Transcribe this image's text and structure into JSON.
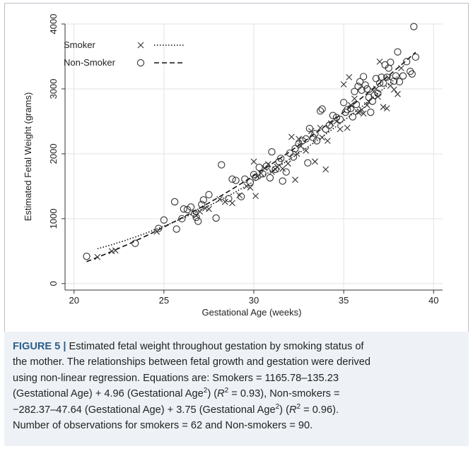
{
  "chart_data": {
    "type": "scatter",
    "xlabel": "Gestational Age (weeks)",
    "ylabel": "Estimated Fetal Weight (grams)",
    "xlim": [
      19.5,
      40.5
    ],
    "ylim": [
      -100,
      4000
    ],
    "xticks": [
      20,
      25,
      30,
      35,
      40
    ],
    "yticks": [
      0,
      1000,
      2000,
      3000,
      4000
    ],
    "grid": true,
    "legend_position": "top-left",
    "series": [
      {
        "name": "Smoker",
        "marker": "x",
        "line_style": "dotted",
        "fit": {
          "a": 1165.78,
          "b": -135.23,
          "c": 4.96
        },
        "x": [
          21.3,
          22.1,
          22.3,
          24.6,
          26.8,
          27.0,
          27.3,
          27.5,
          28.1,
          28.4,
          28.8,
          29.2,
          29.6,
          29.8,
          30.0,
          30.1,
          30.4,
          30.6,
          30.8,
          31.0,
          31.2,
          31.3,
          31.6,
          31.9,
          32.1,
          32.3,
          32.4,
          32.6,
          32.9,
          33.2,
          33.4,
          33.7,
          34.0,
          34.1,
          34.3,
          34.6,
          34.8,
          35.0,
          35.2,
          35.3,
          35.4,
          35.6,
          35.8,
          36.0,
          36.1,
          36.3,
          36.4,
          36.6,
          36.8,
          37.0,
          37.2,
          37.4,
          37.6,
          37.8,
          38.0,
          38.2,
          32.5,
          33.8,
          35.9,
          36.9,
          37.5,
          30.2
        ],
        "y": [
          410,
          500,
          510,
          800,
          1050,
          1110,
          1160,
          1150,
          1300,
          1260,
          1240,
          1360,
          1500,
          1480,
          1880,
          1350,
          1700,
          1780,
          1840,
          1720,
          1760,
          1800,
          1770,
          1850,
          2260,
          1600,
          2000,
          2120,
          2050,
          2350,
          1880,
          2400,
          1760,
          2200,
          2470,
          2500,
          2380,
          3070,
          2400,
          3180,
          2750,
          2850,
          2640,
          2680,
          2620,
          2750,
          2800,
          2980,
          3000,
          3420,
          2720,
          2700,
          3050,
          2990,
          2920,
          3320,
          2230,
          2250,
          2650,
          2880,
          3170,
          1650
        ]
      },
      {
        "name": "Non-Smoker",
        "marker": "o",
        "line_style": "dashed",
        "fit": {
          "a": -282.37,
          "b": -47.64,
          "c": 3.75
        },
        "x": [
          20.7,
          23.4,
          24.7,
          25.0,
          25.6,
          25.7,
          26.0,
          26.1,
          26.3,
          26.5,
          26.7,
          26.8,
          26.9,
          27.1,
          27.2,
          27.5,
          27.9,
          28.2,
          28.6,
          28.8,
          29.0,
          29.3,
          29.5,
          29.8,
          30.0,
          30.1,
          30.3,
          30.5,
          30.7,
          30.9,
          31.0,
          31.2,
          31.4,
          31.5,
          31.6,
          31.8,
          32.0,
          32.2,
          32.3,
          32.5,
          32.7,
          32.9,
          33.0,
          33.1,
          33.3,
          33.4,
          33.5,
          33.7,
          33.8,
          34.0,
          34.2,
          34.4,
          34.6,
          34.8,
          35.0,
          35.1,
          35.2,
          35.4,
          35.5,
          35.6,
          35.7,
          35.8,
          35.9,
          36.0,
          36.1,
          36.2,
          36.3,
          36.4,
          36.5,
          36.6,
          36.7,
          36.8,
          36.9,
          37.0,
          37.1,
          37.3,
          37.4,
          37.5,
          37.6,
          37.8,
          37.9,
          38.0,
          38.1,
          38.3,
          38.5,
          38.7,
          38.8,
          38.9,
          39.0,
          37.2
        ],
        "y": [
          420,
          620,
          850,
          980,
          1260,
          840,
          1000,
          1150,
          1140,
          1180,
          1080,
          1020,
          960,
          1220,
          1290,
          1370,
          1010,
          1830,
          1310,
          1610,
          1590,
          1340,
          1610,
          1560,
          1680,
          1640,
          1790,
          1690,
          1810,
          1630,
          2030,
          1760,
          1880,
          1930,
          1580,
          1720,
          2010,
          1950,
          2080,
          2150,
          2200,
          2230,
          1860,
          2390,
          2250,
          2310,
          2200,
          2660,
          2690,
          2380,
          2440,
          2590,
          2560,
          2530,
          2790,
          2640,
          2680,
          2700,
          2570,
          2960,
          2760,
          3040,
          3110,
          2980,
          3190,
          3060,
          3000,
          2870,
          2640,
          2810,
          2900,
          3160,
          2930,
          3090,
          3180,
          3370,
          3180,
          3320,
          3410,
          3120,
          3200,
          3570,
          3110,
          3200,
          3420,
          3270,
          3230,
          3960,
          3490,
          3090
        ]
      }
    ]
  },
  "caption": {
    "label": "FIGURE 5 |",
    "line1": "Estimated fetal weight throughout gestation by smoking status of",
    "line2": "the mother. The relationships between fetal growth and gestation were derived",
    "line3": "using non-linear regression. Equations are: Smokers = 1165.78–135.23",
    "line4a": "(Gestational Age) + 4.96 (Gestational Age",
    "line4b": ") (",
    "line4c": " = 0.93), Non-smokers =",
    "line5a": "−282.37–47.64 (Gestational Age) + 3.75 (Gestational Age",
    "line5b": ") (",
    "line5c": " = 0.96).",
    "line6": "Number of observations for smokers = 62 and Non-smokers = 90.",
    "sup2": "2",
    "r": "R",
    "r_sup": "2"
  },
  "colors": {
    "marker": "#333333",
    "grid": "#e3e3e3",
    "axis": "#333333",
    "caption_bg": "#eef2f6",
    "caption_label": "#2a5d8a"
  }
}
